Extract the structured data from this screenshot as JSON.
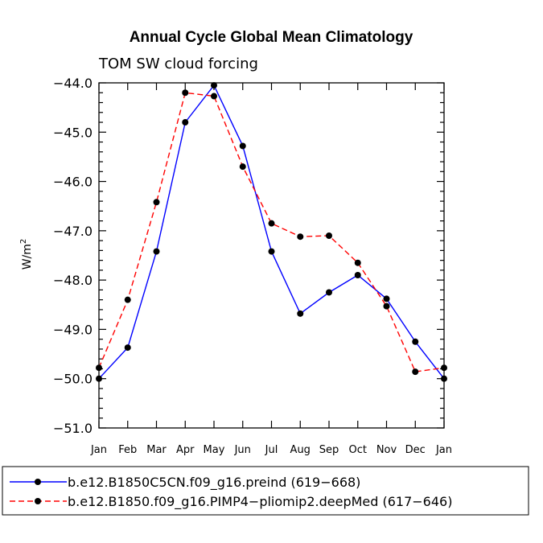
{
  "chart_data": {
    "type": "line",
    "title": "Annual Cycle Global Mean Climatology",
    "subtitle": "TOM SW cloud forcing",
    "xlabel": "",
    "ylabel": "W/m",
    "ylabel_sup": "2",
    "categories": [
      "Jan",
      "Feb",
      "Mar",
      "Apr",
      "May",
      "Jun",
      "Jul",
      "Aug",
      "Sep",
      "Oct",
      "Nov",
      "Dec",
      "Jan"
    ],
    "ylim": [
      -51.0,
      -44.0
    ],
    "yticks": [
      -44.0,
      -45.0,
      -46.0,
      -47.0,
      -48.0,
      -49.0,
      -50.0,
      -51.0
    ],
    "ytick_labels": [
      "−44.0",
      "−45.0",
      "−46.0",
      "−47.0",
      "−48.0",
      "−49.0",
      "−50.0",
      "−51.0"
    ],
    "series": [
      {
        "name": "b.e12.B1850C5CN.f09_g16.preind (619−668)",
        "color": "#0000ff",
        "dash": "solid",
        "values": [
          -50.0,
          -49.37,
          -47.42,
          -44.8,
          -44.05,
          -45.28,
          -47.42,
          -48.68,
          -48.25,
          -47.9,
          -48.38,
          -49.25,
          -50.0
        ]
      },
      {
        "name": "b.e12.B1850.f09_g16.PIMP4−pliomip2.deepMed (617−646)",
        "color": "#ff0000",
        "dash": "dashed",
        "values": [
          -49.78,
          -48.4,
          -46.42,
          -44.2,
          -44.27,
          -45.7,
          -46.85,
          -47.12,
          -47.1,
          -47.65,
          -48.53,
          -49.86,
          -49.78
        ]
      }
    ]
  }
}
